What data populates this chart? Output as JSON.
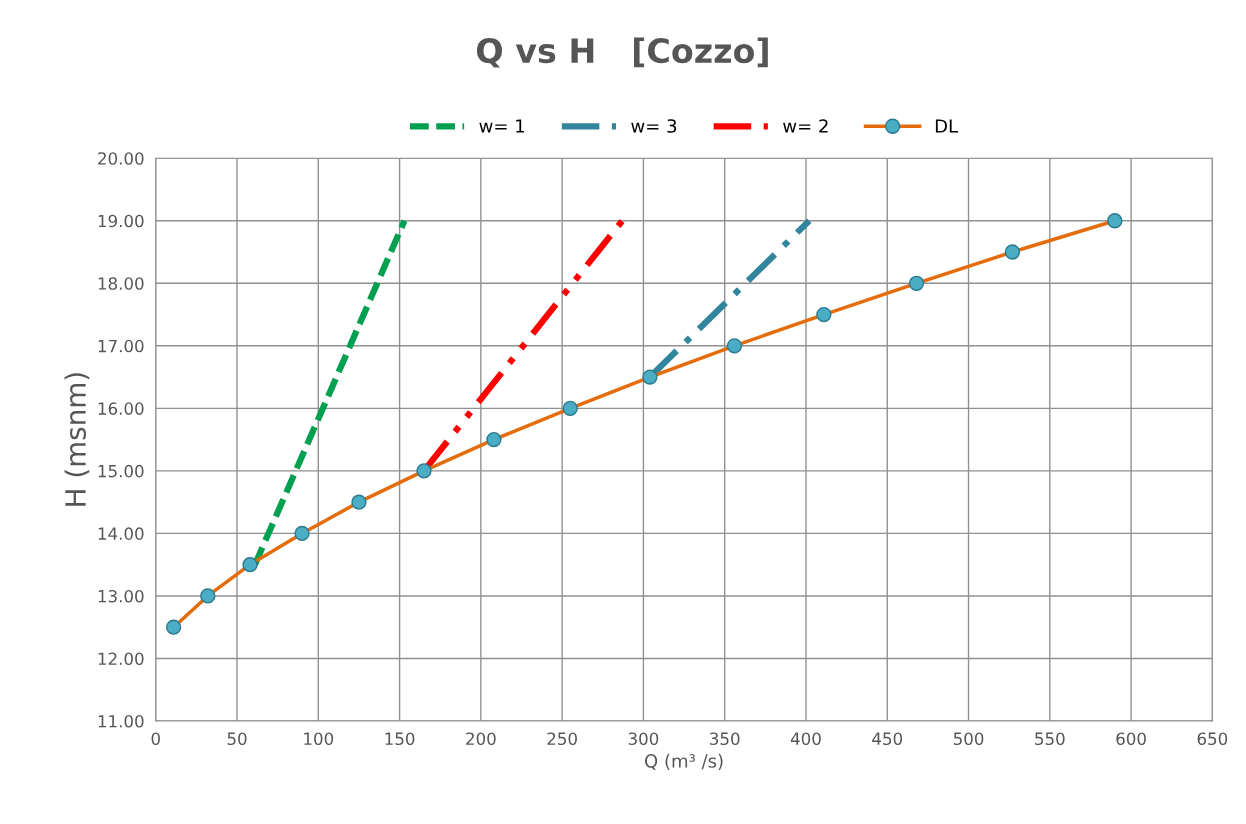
{
  "chart_data": {
    "type": "line",
    "title": "Q vs H   [Cozzo]",
    "xlabel": "Q (m³ /s)",
    "ylabel": "H (msnm)",
    "xlim": [
      0,
      650
    ],
    "xticks": [
      0,
      50,
      100,
      150,
      200,
      250,
      300,
      350,
      400,
      450,
      500,
      550,
      600,
      650
    ],
    "ylim": [
      11,
      20
    ],
    "yticks": [
      {
        "value": 11,
        "label": "11.00"
      },
      {
        "value": 12,
        "label": "12.00"
      },
      {
        "value": 13,
        "label": "13.00"
      },
      {
        "value": 14,
        "label": "14.00"
      },
      {
        "value": 15,
        "label": "15.00"
      },
      {
        "value": 16,
        "label": "16.00"
      },
      {
        "value": 17,
        "label": "17.00"
      },
      {
        "value": 18,
        "label": "18.00"
      },
      {
        "value": 19,
        "label": "19.00"
      },
      {
        "value": 20,
        "label": "20.00"
      }
    ],
    "grid": true,
    "legend": "top",
    "series": [
      {
        "name": "w= 1",
        "color": "#00a050",
        "line_style": "dashed",
        "x": [
          61,
          153
        ],
        "values": [
          13.5,
          19.0
        ]
      },
      {
        "name": "w= 3",
        "color": "#31859c",
        "line_style": "dashdot",
        "x": [
          304,
          402
        ],
        "values": [
          16.5,
          19.0
        ]
      },
      {
        "name": "w= 2",
        "color": "#ff0000",
        "line_style": "dashdotdot",
        "x": [
          165,
          287
        ],
        "values": [
          15.0,
          19.0
        ]
      },
      {
        "name": "DL",
        "color": "#e46c0a",
        "line_style": "solid",
        "marker": "circle",
        "x": [
          11,
          32,
          58,
          90,
          125,
          165,
          208,
          255,
          304,
          356,
          411,
          468,
          527,
          590
        ],
        "values": [
          12.5,
          13.0,
          13.5,
          14.0,
          14.5,
          15.0,
          15.5,
          16.0,
          16.5,
          17.0,
          17.5,
          18.0,
          18.5,
          19.0
        ]
      }
    ]
  }
}
